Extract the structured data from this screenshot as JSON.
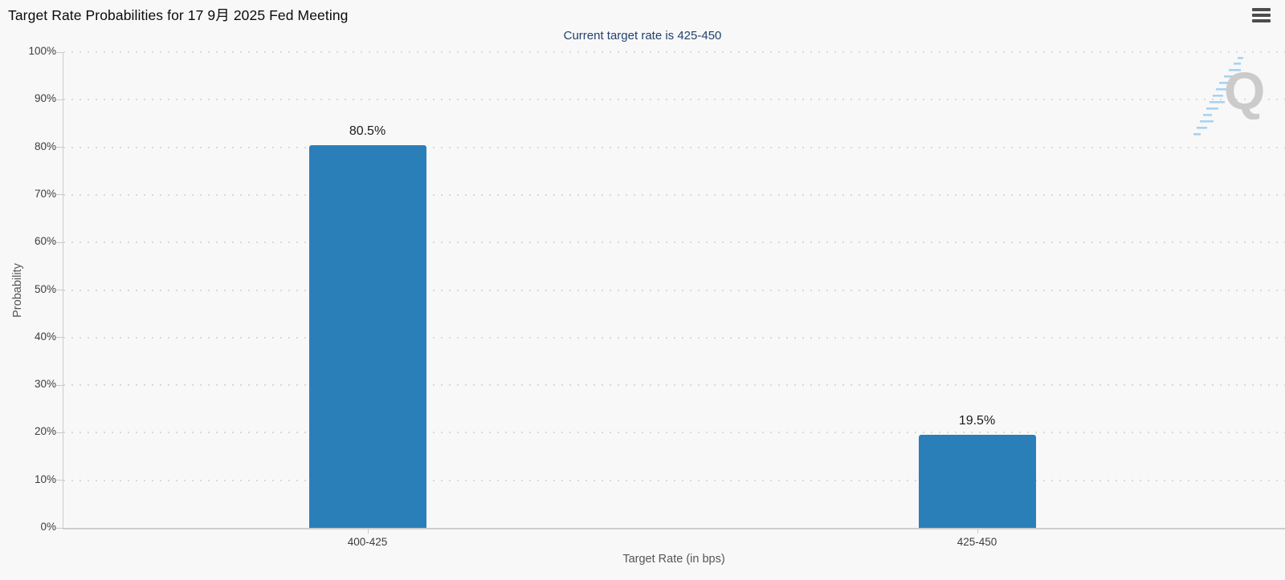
{
  "header": {
    "title": "Target Rate Probabilities for 17 9月 2025 Fed Meeting"
  },
  "chart": {
    "subtitle": "Current target rate is 425-450",
    "watermark_letter": "Q"
  },
  "chart_data": {
    "type": "bar",
    "title": "Target Rate Probabilities for 17 9月 2025 Fed Meeting",
    "subtitle": "Current target rate is 425-450",
    "categories": [
      "400-425",
      "425-450"
    ],
    "values": [
      80.5,
      19.5
    ],
    "value_labels": [
      "80.5%",
      "19.5%"
    ],
    "xlabel": "Target Rate (in bps)",
    "ylabel": "Probability",
    "ylim": [
      0,
      100
    ],
    "ytick_step": 10,
    "ytick_labels": [
      "0%",
      "10%",
      "20%",
      "30%",
      "40%",
      "50%",
      "60%",
      "70%",
      "80%",
      "90%",
      "100%"
    ],
    "bar_color": "#2a7fb8",
    "grid": "dotted-horizontal",
    "legend_position": "none"
  },
  "colors": {
    "background": "#f8f8f8",
    "bar": "#2a7fb8",
    "subtitle_text": "#24406e",
    "axis_line": "#cccccc",
    "grid_dot": "#d9d9d9",
    "tick_label": "#3d3d3d",
    "axis_title": "#565656",
    "title_text": "#0b0b0b",
    "watermark_letter": "#cbcbcb",
    "watermark_stripes": "#a9d2f0"
  }
}
